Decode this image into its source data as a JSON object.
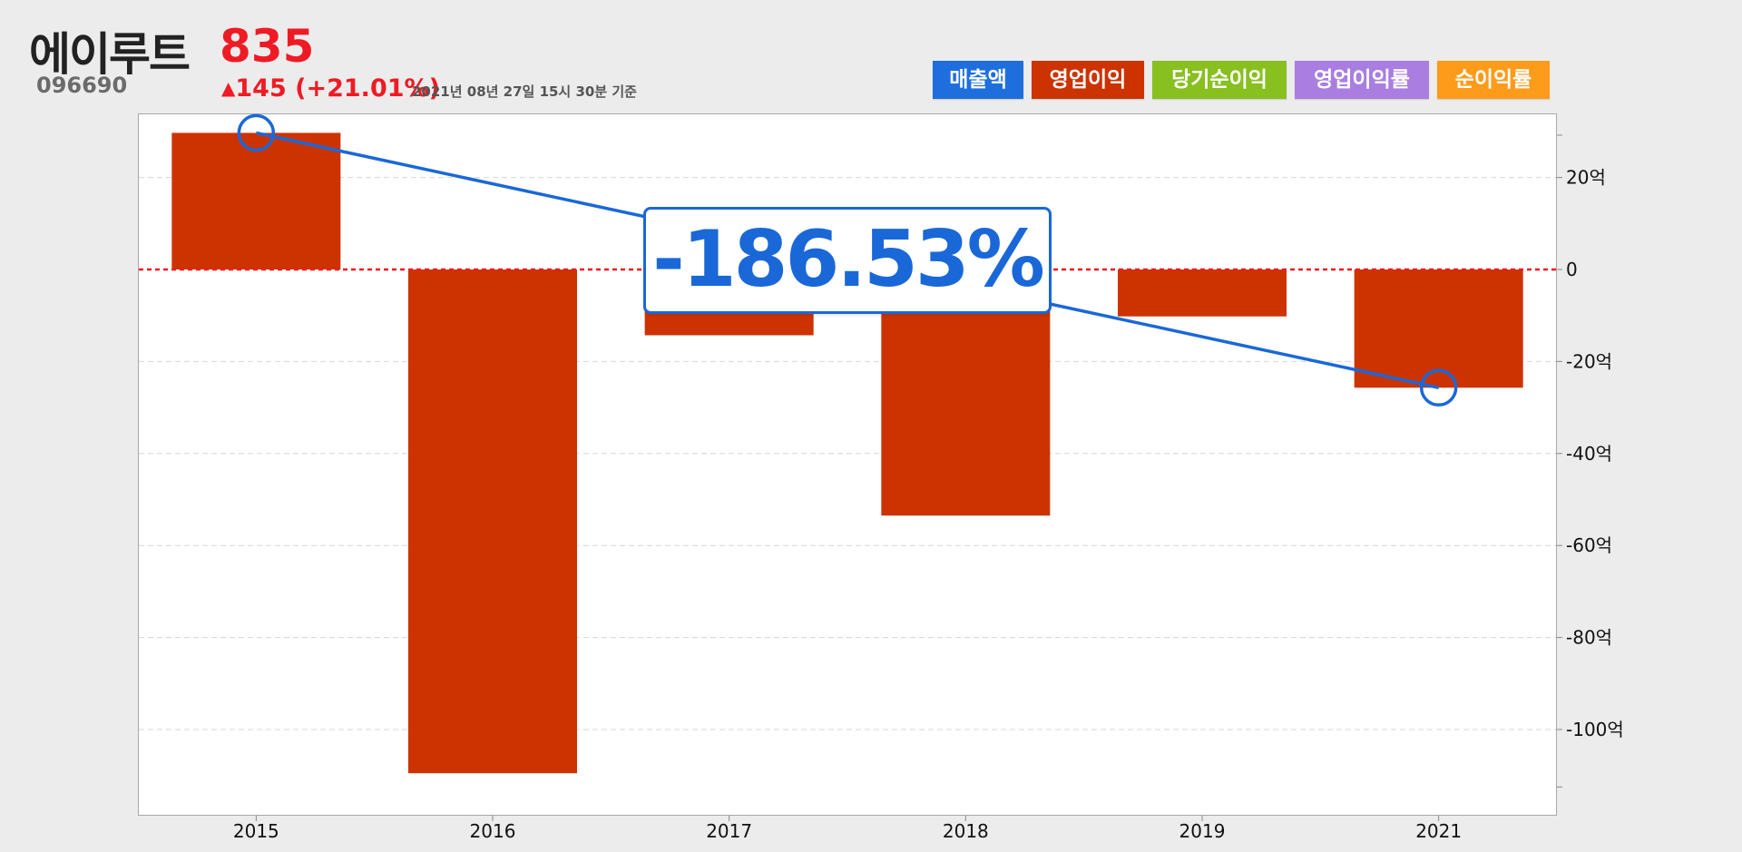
{
  "stock": {
    "name": "에이루트",
    "price": "835",
    "code": "096690",
    "change_arrow": "▲",
    "change": "145 (+21.01%)",
    "as_of": "2021년 08년 27일 15시 30분 기준"
  },
  "legend": [
    {
      "label": "매출액",
      "color": "#1e6fdd"
    },
    {
      "label": "영업이익",
      "color": "#cc3300"
    },
    {
      "label": "당기순이익",
      "color": "#88c020"
    },
    {
      "label": "영업이익률",
      "color": "#a97ee0"
    },
    {
      "label": "순이익률",
      "color": "#ff9b1a"
    }
  ],
  "callout": "-186.53%",
  "chart_data": {
    "type": "bar",
    "categories": [
      "2015",
      "2016",
      "2017",
      "2018",
      "2019",
      "2021"
    ],
    "series": [
      {
        "name": "영업이익",
        "color": "#cc3300",
        "values": [
          29.7,
          -109.5,
          -14.3,
          -53.5,
          -10.2,
          -25.7
        ]
      }
    ],
    "ylim": [
      -120,
      33
    ],
    "yticks": [
      20,
      0,
      -20,
      -40,
      -60,
      -80,
      -100
    ],
    "ytick_labels": [
      "20억",
      "0",
      "-20억",
      "-40억",
      "-60억",
      "-80억",
      "-100억"
    ],
    "zero_line_color": "#ee1b24",
    "trend": {
      "from": "2015",
      "to": "2021",
      "from_value": 29.7,
      "to_value": -25.7,
      "color": "#1a68d8"
    },
    "grid": true
  }
}
